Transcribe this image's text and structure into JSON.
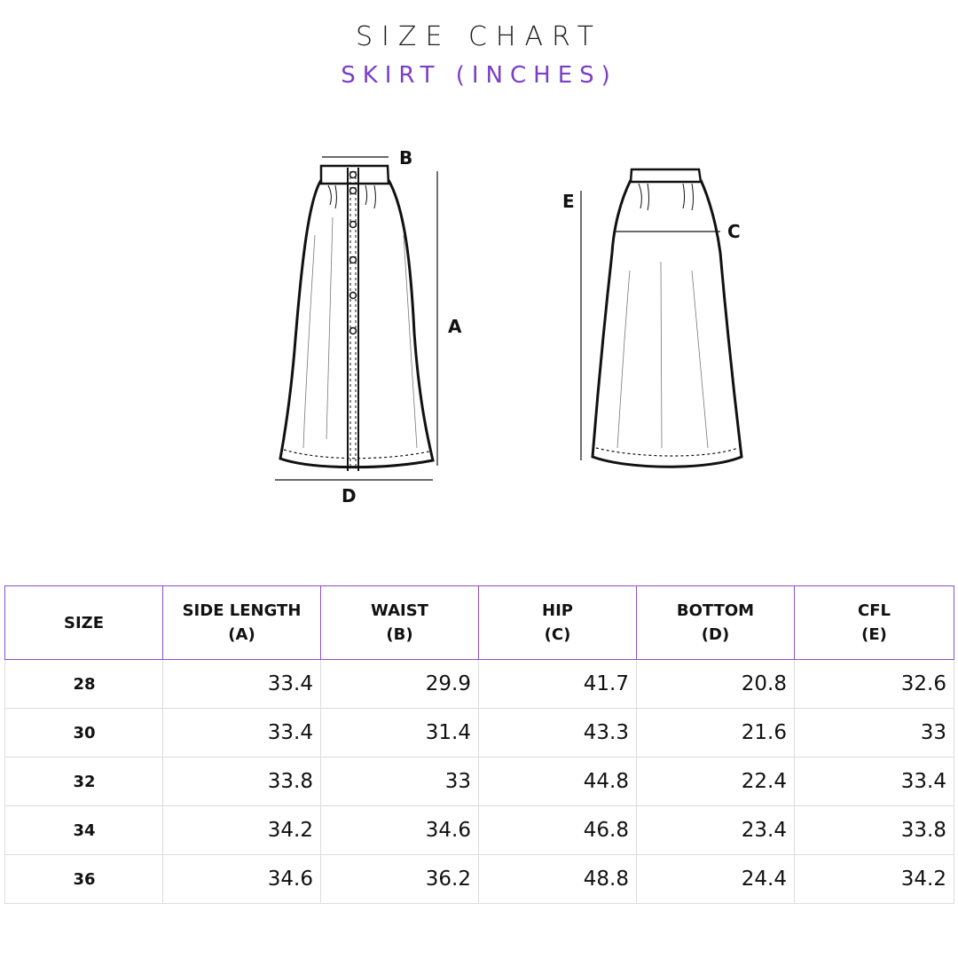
{
  "header": {
    "title": "SIZE CHART",
    "subtitle": "SKIRT (INCHES)"
  },
  "diagram": {
    "front_labels": {
      "a": "A",
      "b": "B",
      "d": "D"
    },
    "back_labels": {
      "c": "C",
      "e": "E"
    }
  },
  "table": {
    "headers": [
      {
        "line1": "SIZE",
        "line2": ""
      },
      {
        "line1": "SIDE LENGTH",
        "line2": "(A)"
      },
      {
        "line1": "WAIST",
        "line2": "(B)"
      },
      {
        "line1": "HIP",
        "line2": "(C)"
      },
      {
        "line1": "BOTTOM",
        "line2": "(D)"
      },
      {
        "line1": "CFL",
        "line2": "(E)"
      }
    ],
    "rows": [
      [
        "28",
        "33.4",
        "29.9",
        "41.7",
        "20.8",
        "32.6"
      ],
      [
        "30",
        "33.4",
        "31.4",
        "43.3",
        "21.6",
        "33"
      ],
      [
        "32",
        "33.8",
        "33",
        "44.8",
        "22.4",
        "33.4"
      ],
      [
        "34",
        "34.2",
        "34.6",
        "46.8",
        "23.4",
        "33.8"
      ],
      [
        "36",
        "34.6",
        "36.2",
        "48.8",
        "24.4",
        "34.2"
      ]
    ]
  }
}
